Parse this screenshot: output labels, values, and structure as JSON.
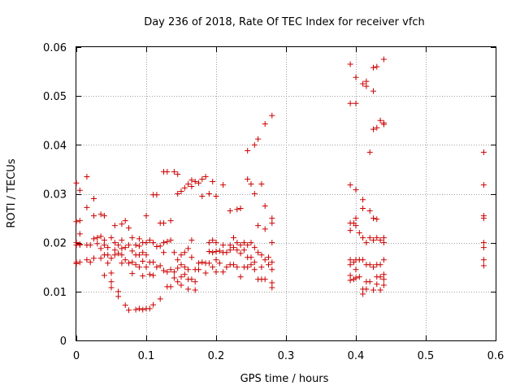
{
  "chart_data": {
    "type": "scatter",
    "title": "Day 236 of 2018, Rate Of TEC Index for receiver vfch",
    "xlabel": "GPS time / hours",
    "ylabel": "ROTI / TECUs",
    "xlim": [
      0,
      0.6
    ],
    "ylim": [
      0,
      0.06
    ],
    "x_ticks": [
      0,
      0.1,
      0.2,
      0.3,
      0.4,
      0.5,
      0.6
    ],
    "x_tick_labels": [
      "0",
      "0.1",
      "0.2",
      "0.3",
      "0.4",
      "0.5",
      "0.6"
    ],
    "y_ticks": [
      0,
      0.01,
      0.02,
      0.03,
      0.04,
      0.05,
      0.06
    ],
    "y_tick_labels": [
      "0",
      "0.01",
      "0.02",
      "0.03",
      "0.04",
      "0.05",
      "0.06"
    ],
    "grid": true,
    "marker": "+",
    "color": "#cc0000",
    "series": [
      {
        "name": "ROTI",
        "points": [
          [
            0.0,
            0.0322
          ],
          [
            0.0,
            0.0243
          ],
          [
            0.0,
            0.02
          ],
          [
            0.0,
            0.0195
          ],
          [
            0.0,
            0.016
          ],
          [
            0.0,
            0.0157
          ],
          [
            0.005,
            0.0307
          ],
          [
            0.005,
            0.0245
          ],
          [
            0.005,
            0.0218
          ],
          [
            0.005,
            0.0197
          ],
          [
            0.005,
            0.0195
          ],
          [
            0.005,
            0.016
          ],
          [
            0.015,
            0.0335
          ],
          [
            0.015,
            0.0272
          ],
          [
            0.015,
            0.0195
          ],
          [
            0.015,
            0.0165
          ],
          [
            0.02,
            0.0195
          ],
          [
            0.02,
            0.016
          ],
          [
            0.025,
            0.029
          ],
          [
            0.025,
            0.0255
          ],
          [
            0.025,
            0.0208
          ],
          [
            0.025,
            0.0168
          ],
          [
            0.03,
            0.021
          ],
          [
            0.03,
            0.0198
          ],
          [
            0.035,
            0.0258
          ],
          [
            0.035,
            0.0213
          ],
          [
            0.035,
            0.0188
          ],
          [
            0.035,
            0.0168
          ],
          [
            0.04,
            0.0255
          ],
          [
            0.04,
            0.0205
          ],
          [
            0.04,
            0.0195
          ],
          [
            0.04,
            0.0175
          ],
          [
            0.04,
            0.0133
          ],
          [
            0.045,
            0.019
          ],
          [
            0.045,
            0.0175
          ],
          [
            0.045,
            0.0158
          ],
          [
            0.05,
            0.021
          ],
          [
            0.05,
            0.0168
          ],
          [
            0.05,
            0.0138
          ],
          [
            0.05,
            0.012
          ],
          [
            0.05,
            0.0108
          ],
          [
            0.055,
            0.0235
          ],
          [
            0.055,
            0.02
          ],
          [
            0.055,
            0.0185
          ],
          [
            0.055,
            0.0175
          ],
          [
            0.06,
            0.0195
          ],
          [
            0.06,
            0.0178
          ],
          [
            0.06,
            0.01
          ],
          [
            0.06,
            0.009
          ],
          [
            0.065,
            0.0238
          ],
          [
            0.065,
            0.0205
          ],
          [
            0.065,
            0.0188
          ],
          [
            0.065,
            0.0175
          ],
          [
            0.065,
            0.0158
          ],
          [
            0.07,
            0.0245
          ],
          [
            0.07,
            0.019
          ],
          [
            0.07,
            0.0165
          ],
          [
            0.07,
            0.0072
          ],
          [
            0.075,
            0.023
          ],
          [
            0.075,
            0.0195
          ],
          [
            0.075,
            0.0158
          ],
          [
            0.075,
            0.0062
          ],
          [
            0.08,
            0.021
          ],
          [
            0.08,
            0.0183
          ],
          [
            0.08,
            0.016
          ],
          [
            0.08,
            0.0137
          ],
          [
            0.085,
            0.0195
          ],
          [
            0.085,
            0.0175
          ],
          [
            0.085,
            0.0155
          ],
          [
            0.085,
            0.0063
          ],
          [
            0.09,
            0.0208
          ],
          [
            0.09,
            0.0193
          ],
          [
            0.09,
            0.0175
          ],
          [
            0.09,
            0.015
          ],
          [
            0.09,
            0.0065
          ],
          [
            0.095,
            0.02
          ],
          [
            0.095,
            0.018
          ],
          [
            0.095,
            0.0162
          ],
          [
            0.095,
            0.0132
          ],
          [
            0.095,
            0.0063
          ],
          [
            0.1,
            0.0255
          ],
          [
            0.1,
            0.02
          ],
          [
            0.1,
            0.0175
          ],
          [
            0.1,
            0.015
          ],
          [
            0.1,
            0.0065
          ],
          [
            0.105,
            0.0205
          ],
          [
            0.105,
            0.016
          ],
          [
            0.105,
            0.0135
          ],
          [
            0.105,
            0.0065
          ],
          [
            0.11,
            0.0298
          ],
          [
            0.11,
            0.02
          ],
          [
            0.11,
            0.016
          ],
          [
            0.11,
            0.0133
          ],
          [
            0.11,
            0.0073
          ],
          [
            0.115,
            0.0298
          ],
          [
            0.115,
            0.0192
          ],
          [
            0.115,
            0.015
          ],
          [
            0.12,
            0.024
          ],
          [
            0.12,
            0.0193
          ],
          [
            0.12,
            0.0153
          ],
          [
            0.12,
            0.0085
          ],
          [
            0.125,
            0.0345
          ],
          [
            0.125,
            0.024
          ],
          [
            0.125,
            0.02
          ],
          [
            0.125,
            0.018
          ],
          [
            0.125,
            0.0143
          ],
          [
            0.13,
            0.0345
          ],
          [
            0.13,
            0.0202
          ],
          [
            0.13,
            0.014
          ],
          [
            0.13,
            0.011
          ],
          [
            0.135,
            0.0245
          ],
          [
            0.135,
            0.0205
          ],
          [
            0.135,
            0.0145
          ],
          [
            0.135,
            0.011
          ],
          [
            0.14,
            0.0345
          ],
          [
            0.14,
            0.018
          ],
          [
            0.14,
            0.014
          ],
          [
            0.14,
            0.0128
          ],
          [
            0.145,
            0.034
          ],
          [
            0.145,
            0.03
          ],
          [
            0.145,
            0.0165
          ],
          [
            0.145,
            0.0148
          ],
          [
            0.145,
            0.012
          ],
          [
            0.15,
            0.0305
          ],
          [
            0.15,
            0.0175
          ],
          [
            0.15,
            0.0155
          ],
          [
            0.15,
            0.013
          ],
          [
            0.15,
            0.0113
          ],
          [
            0.155,
            0.0312
          ],
          [
            0.155,
            0.018
          ],
          [
            0.155,
            0.015
          ],
          [
            0.155,
            0.0135
          ],
          [
            0.16,
            0.032
          ],
          [
            0.16,
            0.0188
          ],
          [
            0.16,
            0.0145
          ],
          [
            0.16,
            0.0125
          ],
          [
            0.16,
            0.0105
          ],
          [
            0.165,
            0.0328
          ],
          [
            0.165,
            0.0315
          ],
          [
            0.165,
            0.0205
          ],
          [
            0.165,
            0.017
          ],
          [
            0.165,
            0.0125
          ],
          [
            0.17,
            0.0325
          ],
          [
            0.17,
            0.0145
          ],
          [
            0.17,
            0.012
          ],
          [
            0.17,
            0.0103
          ],
          [
            0.175,
            0.0322
          ],
          [
            0.175,
            0.0158
          ],
          [
            0.175,
            0.0145
          ],
          [
            0.18,
            0.033
          ],
          [
            0.18,
            0.0295
          ],
          [
            0.18,
            0.016
          ],
          [
            0.185,
            0.0335
          ],
          [
            0.185,
            0.0158
          ],
          [
            0.185,
            0.0138
          ],
          [
            0.19,
            0.03
          ],
          [
            0.19,
            0.02
          ],
          [
            0.19,
            0.0182
          ],
          [
            0.19,
            0.0158
          ],
          [
            0.195,
            0.0325
          ],
          [
            0.195,
            0.0205
          ],
          [
            0.195,
            0.018
          ],
          [
            0.195,
            0.015
          ],
          [
            0.2,
            0.0295
          ],
          [
            0.2,
            0.02
          ],
          [
            0.2,
            0.0182
          ],
          [
            0.2,
            0.0165
          ],
          [
            0.2,
            0.014
          ],
          [
            0.205,
            0.0183
          ],
          [
            0.205,
            0.0158
          ],
          [
            0.21,
            0.0318
          ],
          [
            0.21,
            0.0195
          ],
          [
            0.21,
            0.018
          ],
          [
            0.21,
            0.014
          ],
          [
            0.215,
            0.018
          ],
          [
            0.215,
            0.015
          ],
          [
            0.22,
            0.0265
          ],
          [
            0.22,
            0.0195
          ],
          [
            0.22,
            0.0185
          ],
          [
            0.22,
            0.0155
          ],
          [
            0.225,
            0.021
          ],
          [
            0.225,
            0.019
          ],
          [
            0.225,
            0.0155
          ],
          [
            0.23,
            0.0268
          ],
          [
            0.23,
            0.02
          ],
          [
            0.23,
            0.0185
          ],
          [
            0.23,
            0.015
          ],
          [
            0.235,
            0.027
          ],
          [
            0.235,
            0.0195
          ],
          [
            0.235,
            0.0178
          ],
          [
            0.235,
            0.013
          ],
          [
            0.24,
            0.02
          ],
          [
            0.24,
            0.0185
          ],
          [
            0.24,
            0.015
          ],
          [
            0.245,
            0.0388
          ],
          [
            0.245,
            0.033
          ],
          [
            0.245,
            0.0195
          ],
          [
            0.245,
            0.017
          ],
          [
            0.245,
            0.015
          ],
          [
            0.25,
            0.032
          ],
          [
            0.25,
            0.02
          ],
          [
            0.25,
            0.017
          ],
          [
            0.25,
            0.0155
          ],
          [
            0.255,
            0.04
          ],
          [
            0.255,
            0.03
          ],
          [
            0.255,
            0.019
          ],
          [
            0.255,
            0.016
          ],
          [
            0.255,
            0.0145
          ],
          [
            0.26,
            0.0412
          ],
          [
            0.26,
            0.0235
          ],
          [
            0.26,
            0.018
          ],
          [
            0.26,
            0.0125
          ],
          [
            0.265,
            0.032
          ],
          [
            0.265,
            0.0175
          ],
          [
            0.265,
            0.015
          ],
          [
            0.265,
            0.0125
          ],
          [
            0.27,
            0.0443
          ],
          [
            0.27,
            0.0275
          ],
          [
            0.27,
            0.0228
          ],
          [
            0.27,
            0.0165
          ],
          [
            0.27,
            0.0125
          ],
          [
            0.275,
            0.017
          ],
          [
            0.275,
            0.0155
          ],
          [
            0.28,
            0.046
          ],
          [
            0.28,
            0.025
          ],
          [
            0.28,
            0.024
          ],
          [
            0.28,
            0.02
          ],
          [
            0.28,
            0.016
          ],
          [
            0.28,
            0.0145
          ],
          [
            0.28,
            0.0118
          ],
          [
            0.28,
            0.0108
          ],
          [
            0.392,
            0.0565
          ],
          [
            0.392,
            0.0485
          ],
          [
            0.392,
            0.0318
          ],
          [
            0.392,
            0.024
          ],
          [
            0.392,
            0.0225
          ],
          [
            0.392,
            0.0165
          ],
          [
            0.392,
            0.0155
          ],
          [
            0.392,
            0.0133
          ],
          [
            0.392,
            0.0123
          ],
          [
            0.397,
            0.024
          ],
          [
            0.397,
            0.016
          ],
          [
            0.397,
            0.0125
          ],
          [
            0.4,
            0.0538
          ],
          [
            0.4,
            0.0485
          ],
          [
            0.4,
            0.0308
          ],
          [
            0.4,
            0.025
          ],
          [
            0.4,
            0.0235
          ],
          [
            0.4,
            0.0165
          ],
          [
            0.4,
            0.0145
          ],
          [
            0.4,
            0.0128
          ],
          [
            0.405,
            0.022
          ],
          [
            0.405,
            0.0165
          ],
          [
            0.405,
            0.013
          ],
          [
            0.41,
            0.0525
          ],
          [
            0.41,
            0.0288
          ],
          [
            0.41,
            0.027
          ],
          [
            0.41,
            0.021
          ],
          [
            0.41,
            0.0165
          ],
          [
            0.41,
            0.0105
          ],
          [
            0.41,
            0.0095
          ],
          [
            0.415,
            0.053
          ],
          [
            0.415,
            0.052
          ],
          [
            0.415,
            0.02
          ],
          [
            0.415,
            0.0155
          ],
          [
            0.415,
            0.012
          ],
          [
            0.415,
            0.0105
          ],
          [
            0.42,
            0.0385
          ],
          [
            0.42,
            0.0265
          ],
          [
            0.42,
            0.021
          ],
          [
            0.42,
            0.0155
          ],
          [
            0.42,
            0.012
          ],
          [
            0.425,
            0.0558
          ],
          [
            0.425,
            0.051
          ],
          [
            0.425,
            0.0432
          ],
          [
            0.425,
            0.025
          ],
          [
            0.425,
            0.0205
          ],
          [
            0.425,
            0.015
          ],
          [
            0.425,
            0.0103
          ],
          [
            0.43,
            0.056
          ],
          [
            0.43,
            0.0435
          ],
          [
            0.43,
            0.0248
          ],
          [
            0.43,
            0.021
          ],
          [
            0.43,
            0.0155
          ],
          [
            0.43,
            0.013
          ],
          [
            0.43,
            0.0115
          ],
          [
            0.435,
            0.045
          ],
          [
            0.435,
            0.0205
          ],
          [
            0.435,
            0.0155
          ],
          [
            0.435,
            0.013
          ],
          [
            0.435,
            0.0103
          ],
          [
            0.44,
            0.0575
          ],
          [
            0.44,
            0.0445
          ],
          [
            0.44,
            0.0442
          ],
          [
            0.44,
            0.021
          ],
          [
            0.44,
            0.02
          ],
          [
            0.44,
            0.0165
          ],
          [
            0.44,
            0.0135
          ],
          [
            0.44,
            0.0125
          ],
          [
            0.44,
            0.0113
          ],
          [
            0.583,
            0.0385
          ],
          [
            0.583,
            0.0318
          ],
          [
            0.583,
            0.0255
          ],
          [
            0.583,
            0.025
          ],
          [
            0.583,
            0.02
          ],
          [
            0.583,
            0.019
          ],
          [
            0.583,
            0.0165
          ],
          [
            0.583,
            0.0153
          ]
        ]
      }
    ]
  }
}
